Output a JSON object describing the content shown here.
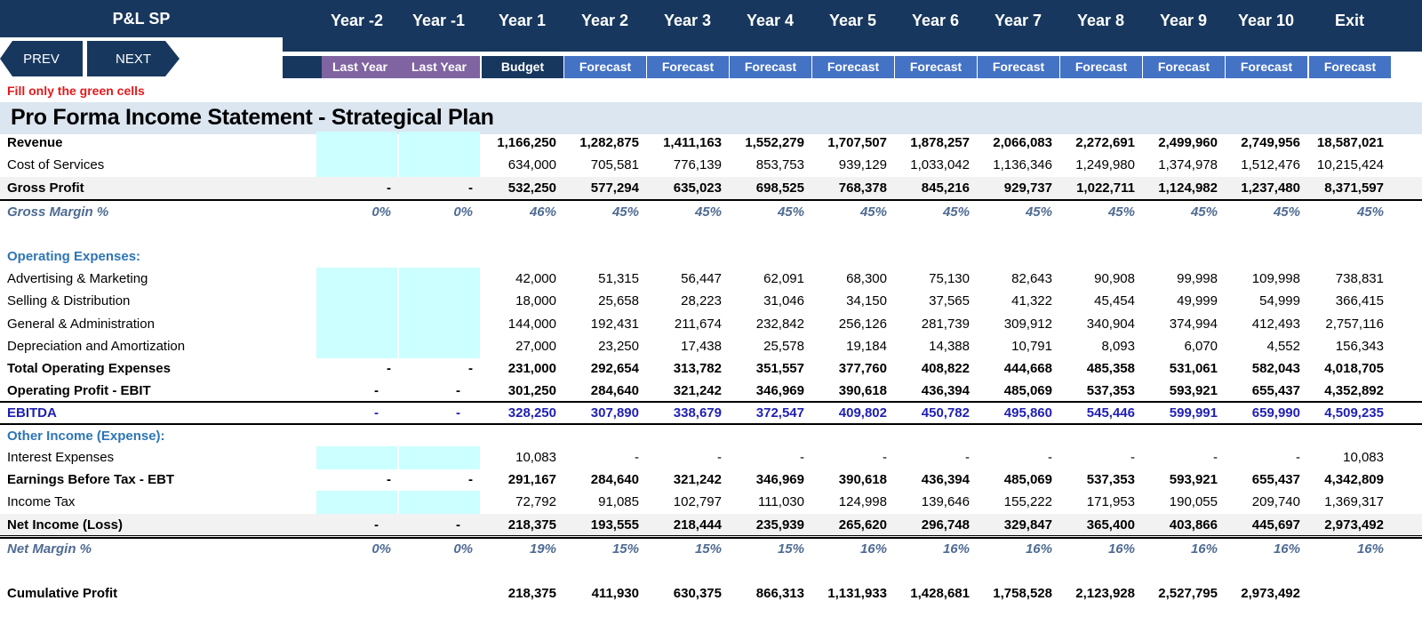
{
  "sheet_title": "P&L SP",
  "nav": {
    "prev": "PREV",
    "next": "NEXT"
  },
  "years": [
    "Year -2",
    "Year -1",
    "Year 1",
    "Year 2",
    "Year 3",
    "Year 4",
    "Year 5",
    "Year 6",
    "Year 7",
    "Year 8",
    "Year 9",
    "Year 10",
    "Exit"
  ],
  "subheaders": [
    "Last Year",
    "Last Year",
    "Budget",
    "Forecast",
    "Forecast",
    "Forecast",
    "Forecast",
    "Forecast",
    "Forecast",
    "Forecast",
    "Forecast",
    "Forecast",
    "Forecast"
  ],
  "colors": {
    "navy": "#17375e",
    "last_year": "#8064a2",
    "budget": "#17375e",
    "forecast": "#4472c4",
    "green_cell": "#ccffff",
    "section_bg": "#dce6f1",
    "note": "#e31a1c"
  },
  "fill_note": "Fill only the green cells",
  "section_title": "Pro Forma Income Statement - Strategical Plan",
  "rows": [
    {
      "label": "Revenue",
      "values": [
        "",
        "",
        "1,166,250",
        "1,282,875",
        "1,411,163",
        "1,552,279",
        "1,707,507",
        "1,878,257",
        "2,066,083",
        "2,272,691",
        "2,499,960",
        "2,749,956",
        "18,587,021"
      ]
    },
    {
      "label": "Cost of Services",
      "values": [
        "",
        "",
        "634,000",
        "705,581",
        "776,139",
        "853,753",
        "939,129",
        "1,033,042",
        "1,136,346",
        "1,249,980",
        "1,374,978",
        "1,512,476",
        "10,215,424"
      ]
    },
    {
      "label": "Gross Profit",
      "values": [
        "-",
        "-",
        "532,250",
        "577,294",
        "635,023",
        "698,525",
        "768,378",
        "845,216",
        "929,737",
        "1,022,711",
        "1,124,982",
        "1,237,480",
        "8,371,597"
      ]
    },
    {
      "label": "Gross Margin %",
      "values": [
        "0%",
        "0%",
        "46%",
        "45%",
        "45%",
        "45%",
        "45%",
        "45%",
        "45%",
        "45%",
        "45%",
        "45%",
        "45%"
      ]
    },
    {
      "label": "Operating Expenses:",
      "values": []
    },
    {
      "label": "Advertising & Marketing",
      "values": [
        "",
        "",
        "42,000",
        "51,315",
        "56,447",
        "62,091",
        "68,300",
        "75,130",
        "82,643",
        "90,908",
        "99,998",
        "109,998",
        "738,831"
      ]
    },
    {
      "label": "Selling & Distribution",
      "values": [
        "",
        "",
        "18,000",
        "25,658",
        "28,223",
        "31,046",
        "34,150",
        "37,565",
        "41,322",
        "45,454",
        "49,999",
        "54,999",
        "366,415"
      ]
    },
    {
      "label": "General & Administration",
      "values": [
        "",
        "",
        "144,000",
        "192,431",
        "211,674",
        "232,842",
        "256,126",
        "281,739",
        "309,912",
        "340,904",
        "374,994",
        "412,493",
        "2,757,116"
      ]
    },
    {
      "label": "Depreciation and Amortization",
      "values": [
        "",
        "",
        "27,000",
        "23,250",
        "17,438",
        "25,578",
        "19,184",
        "14,388",
        "10,791",
        "8,093",
        "6,070",
        "4,552",
        "156,343"
      ]
    },
    {
      "label": "Total Operating Expenses",
      "values": [
        "-",
        "-",
        "231,000",
        "292,654",
        "313,782",
        "351,557",
        "377,760",
        "408,822",
        "444,668",
        "485,358",
        "531,061",
        "582,043",
        "4,018,705"
      ]
    },
    {
      "label": "Operating Profit - EBIT",
      "values": [
        "-",
        "-",
        "301,250",
        "284,640",
        "321,242",
        "346,969",
        "390,618",
        "436,394",
        "485,069",
        "537,353",
        "593,921",
        "655,437",
        "4,352,892"
      ]
    },
    {
      "label": "EBITDA",
      "values": [
        "-",
        "-",
        "328,250",
        "307,890",
        "338,679",
        "372,547",
        "409,802",
        "450,782",
        "495,860",
        "545,446",
        "599,991",
        "659,990",
        "4,509,235"
      ]
    },
    {
      "label": "Other Income (Expense):",
      "values": []
    },
    {
      "label": "Interest Expenses",
      "values": [
        "",
        "",
        "10,083",
        "-",
        "-",
        "-",
        "-",
        "-",
        "-",
        "-",
        "-",
        "-",
        "10,083"
      ]
    },
    {
      "label": "Earnings Before Tax - EBT",
      "values": [
        "-",
        "-",
        "291,167",
        "284,640",
        "321,242",
        "346,969",
        "390,618",
        "436,394",
        "485,069",
        "537,353",
        "593,921",
        "655,437",
        "4,342,809"
      ]
    },
    {
      "label": "Income Tax",
      "values": [
        "",
        "",
        "72,792",
        "91,085",
        "102,797",
        "111,030",
        "124,998",
        "139,646",
        "155,222",
        "171,953",
        "190,055",
        "209,740",
        "1,369,317"
      ]
    },
    {
      "label": "Net Income (Loss)",
      "values": [
        "-",
        "-",
        "218,375",
        "193,555",
        "218,444",
        "235,939",
        "265,620",
        "296,748",
        "329,847",
        "365,400",
        "403,866",
        "445,697",
        "2,973,492"
      ]
    },
    {
      "label": "Net Margin %",
      "values": [
        "0%",
        "0%",
        "19%",
        "15%",
        "15%",
        "15%",
        "16%",
        "16%",
        "16%",
        "16%",
        "16%",
        "16%",
        "16%"
      ]
    },
    {
      "label": "Cumulative Profit",
      "values": [
        "",
        "",
        "218,375",
        "411,930",
        "630,375",
        "866,313",
        "1,131,933",
        "1,428,681",
        "1,758,528",
        "2,123,928",
        "2,527,795",
        "2,973,492",
        ""
      ]
    }
  ]
}
